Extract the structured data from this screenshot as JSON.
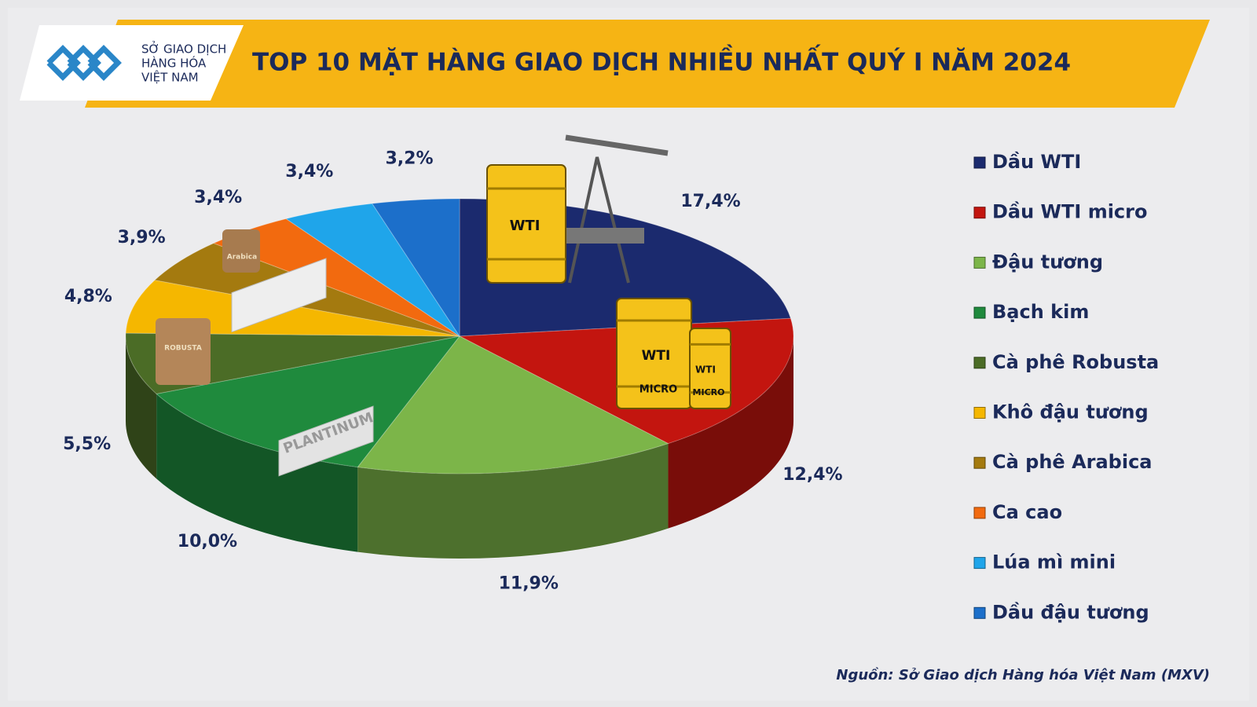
{
  "logo": {
    "lines": [
      "SỞ GIAO DỊCH",
      "HÀNG HÓA",
      "VIỆT NAM"
    ]
  },
  "illustration_labels": [
    "WTI",
    "WTI",
    "MICRO",
    "WTI",
    "MICRO",
    "PLANTINUM",
    "Arabica",
    "ROBUSTA"
  ],
  "chart_data": {
    "type": "pie3d",
    "title": "TOP 10 MẶT HÀNG GIAO DỊCH NHIỀU NHẤT QUÝ I NĂM 2024",
    "source": "Nguồn: Sở Giao dịch Hàng hóa Việt Nam (MXV)",
    "categories": [
      "Dầu WTI",
      "Dầu WTI micro",
      "Đậu tương",
      "Bạch kim",
      "Cà phê Robusta",
      "Khô đậu tương",
      "Cà phê Arabica",
      "Ca cao",
      "Lúa mì mini",
      "Dầu đậu tương"
    ],
    "values": [
      17.4,
      12.4,
      11.9,
      10.0,
      5.5,
      4.8,
      3.9,
      3.4,
      3.4,
      3.2
    ],
    "value_labels": [
      "17,4%",
      "12,4%",
      "11,9%",
      "10,0%",
      "5,5%",
      "4,8%",
      "3,9%",
      "3,4%",
      "3,4%",
      "3,2%"
    ],
    "colors": [
      "#1b2a6e",
      "#c3150f",
      "#7cb549",
      "#1f8a3d",
      "#4b6c26",
      "#f5b700",
      "#a47a0f",
      "#f26a0f",
      "#1fa5ea",
      "#1c6fca"
    ],
    "legend": "right"
  }
}
